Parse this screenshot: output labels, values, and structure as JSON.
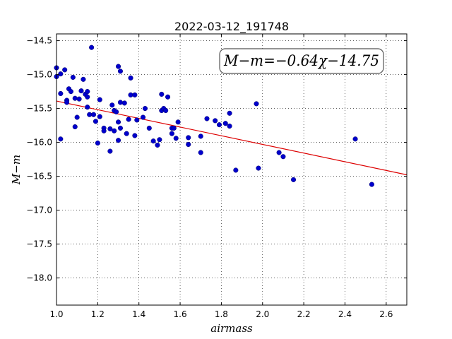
{
  "chart_data": {
    "type": "scatter",
    "title": "2022-03-12_191748",
    "xlabel": "airmass",
    "ylabel": "M−m",
    "xlim": [
      1.0,
      2.7
    ],
    "ylim": [
      -14.4,
      -18.4
    ],
    "y_inverted": true,
    "grid": true,
    "x_ticks": [
      "1.0",
      "1.2",
      "1.4",
      "1.6",
      "1.8",
      "2.0",
      "2.2",
      "2.4",
      "2.6"
    ],
    "x_tick_values": [
      1.0,
      1.2,
      1.4,
      1.6,
      1.8,
      2.0,
      2.2,
      2.4,
      2.6
    ],
    "y_ticks": [
      "−14.5",
      "−15.0",
      "−15.5",
      "−16.0",
      "−16.5",
      "−17.0",
      "−17.5",
      "−18.0"
    ],
    "y_tick_values": [
      -14.5,
      -15.0,
      -15.5,
      -16.0,
      -16.5,
      -17.0,
      -17.5,
      -18.0
    ],
    "fit": {
      "slope": -0.64,
      "intercept": -14.75,
      "color": "#dd0000"
    },
    "annotation": "M−m=−0.64χ−14.75",
    "point_color": "#0000cc",
    "points": [
      [
        1.0,
        -14.9
      ],
      [
        1.0,
        -15.03
      ],
      [
        1.02,
        -14.99
      ],
      [
        1.02,
        -15.28
      ],
      [
        1.02,
        -15.95
      ],
      [
        1.04,
        -14.93
      ],
      [
        1.05,
        -15.38
      ],
      [
        1.05,
        -15.41
      ],
      [
        1.06,
        -15.21
      ],
      [
        1.07,
        -15.25
      ],
      [
        1.08,
        -15.04
      ],
      [
        1.09,
        -15.35
      ],
      [
        1.09,
        -15.77
      ],
      [
        1.1,
        -15.63
      ],
      [
        1.11,
        -15.36
      ],
      [
        1.12,
        -15.24
      ],
      [
        1.13,
        -15.07
      ],
      [
        1.14,
        -15.29
      ],
      [
        1.15,
        -15.25
      ],
      [
        1.15,
        -15.33
      ],
      [
        1.15,
        -15.48
      ],
      [
        1.16,
        -15.59
      ],
      [
        1.17,
        -14.6
      ],
      [
        1.18,
        -15.59
      ],
      [
        1.19,
        -15.69
      ],
      [
        1.2,
        -16.01
      ],
      [
        1.21,
        -15.37
      ],
      [
        1.21,
        -15.62
      ],
      [
        1.23,
        -15.79
      ],
      [
        1.23,
        -15.83
      ],
      [
        1.26,
        -16.13
      ],
      [
        1.26,
        -15.8
      ],
      [
        1.27,
        -15.45
      ],
      [
        1.28,
        -15.53
      ],
      [
        1.28,
        -15.83
      ],
      [
        1.29,
        -15.55
      ],
      [
        1.3,
        -15.7
      ],
      [
        1.3,
        -15.97
      ],
      [
        1.3,
        -14.88
      ],
      [
        1.31,
        -14.95
      ],
      [
        1.31,
        -15.41
      ],
      [
        1.31,
        -15.79
      ],
      [
        1.33,
        -15.42
      ],
      [
        1.34,
        -15.87
      ],
      [
        1.35,
        -15.66
      ],
      [
        1.36,
        -15.05
      ],
      [
        1.36,
        -15.3
      ],
      [
        1.38,
        -15.3
      ],
      [
        1.38,
        -15.9
      ],
      [
        1.39,
        -15.67
      ],
      [
        1.42,
        -15.63
      ],
      [
        1.43,
        -15.5
      ],
      [
        1.45,
        -15.79
      ],
      [
        1.47,
        -15.98
      ],
      [
        1.49,
        -16.04
      ],
      [
        1.5,
        -15.96
      ],
      [
        1.51,
        -15.29
      ],
      [
        1.51,
        -15.53
      ],
      [
        1.52,
        -15.5
      ],
      [
        1.53,
        -15.53
      ],
      [
        1.54,
        -15.33
      ],
      [
        1.56,
        -15.79
      ],
      [
        1.56,
        -15.87
      ],
      [
        1.57,
        -15.79
      ],
      [
        1.58,
        -15.94
      ],
      [
        1.59,
        -15.7
      ],
      [
        1.64,
        -15.93
      ],
      [
        1.64,
        -16.03
      ],
      [
        1.7,
        -15.91
      ],
      [
        1.7,
        -16.15
      ],
      [
        1.73,
        -15.65
      ],
      [
        1.77,
        -15.68
      ],
      [
        1.79,
        -15.74
      ],
      [
        1.82,
        -15.72
      ],
      [
        1.84,
        -15.76
      ],
      [
        1.84,
        -15.57
      ],
      [
        1.87,
        -16.41
      ],
      [
        1.97,
        -15.43
      ],
      [
        1.98,
        -16.38
      ],
      [
        2.08,
        -16.15
      ],
      [
        2.1,
        -16.21
      ],
      [
        2.15,
        -16.55
      ],
      [
        2.45,
        -15.95
      ],
      [
        2.53,
        -16.62
      ]
    ]
  }
}
